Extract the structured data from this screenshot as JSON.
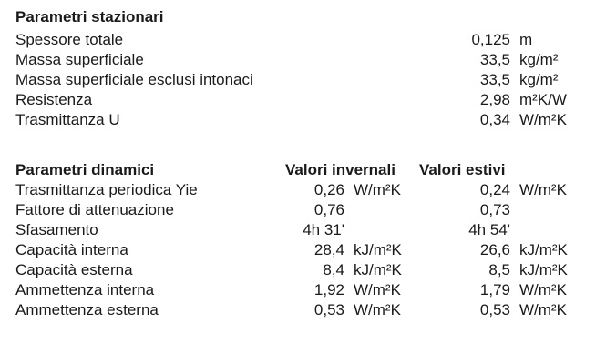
{
  "stationary": {
    "title": "Parametri stazionari",
    "rows": [
      {
        "label": "Spessore totale",
        "value": "0,125",
        "unit": "m"
      },
      {
        "label": "Massa superficiale",
        "value": "33,5",
        "unit": "kg/m²"
      },
      {
        "label": "Massa superficiale esclusi intonaci",
        "value": "33,5",
        "unit": "kg/m²"
      },
      {
        "label": "Resistenza",
        "value": "2,98",
        "unit": "m²K/W"
      },
      {
        "label": "Trasmittanza U",
        "value": "0,34",
        "unit": "W/m²K"
      }
    ]
  },
  "dynamic": {
    "title": "Parametri dinamici",
    "winter_header": "Valori invernali",
    "summer_header": "Valori estivi",
    "rows": [
      {
        "label": "Trasmittanza periodica Yie",
        "winter": "0,26",
        "winter_unit": "W/m²K",
        "summer": "0,24",
        "summer_unit": "W/m²K"
      },
      {
        "label": "Fattore di attenuazione",
        "winter": "0,76",
        "winter_unit": "",
        "summer": "0,73",
        "summer_unit": ""
      },
      {
        "label": "Sfasamento",
        "winter": "4h 31'",
        "winter_unit": "",
        "summer": "4h 54'",
        "summer_unit": ""
      },
      {
        "label": "Capacità interna",
        "winter": "28,4",
        "winter_unit": "kJ/m²K",
        "summer": "26,6",
        "summer_unit": "kJ/m²K"
      },
      {
        "label": "Capacità esterna",
        "winter": "8,4",
        "winter_unit": "kJ/m²K",
        "summer": "8,5",
        "summer_unit": "kJ/m²K"
      },
      {
        "label": "Ammettenza interna",
        "winter": "1,92",
        "winter_unit": "W/m²K",
        "summer": "1,79",
        "summer_unit": "W/m²K"
      },
      {
        "label": "Ammettenza esterna",
        "winter": "0,53",
        "winter_unit": "W/m²K",
        "summer": "0,53",
        "summer_unit": "W/m²K"
      }
    ]
  }
}
